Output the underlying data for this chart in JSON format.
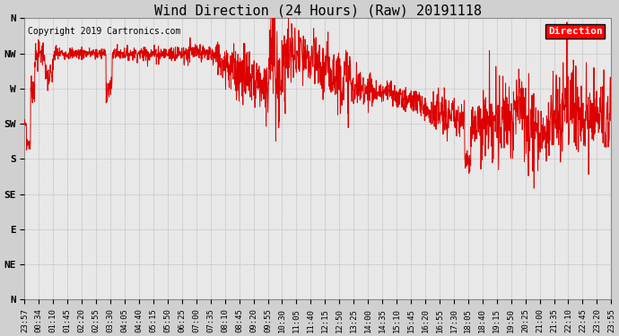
{
  "title": "Wind Direction (24 Hours) (Raw) 20191118",
  "copyright": "Copyright 2019 Cartronics.com",
  "legend_label": "Direction",
  "line_color": "#dd0000",
  "fig_facecolor": "#d0d0d0",
  "ax_facecolor": "#e8e8e8",
  "grid_color": "#999999",
  "ytick_labels": [
    "N",
    "NW",
    "W",
    "SW",
    "S",
    "SE",
    "E",
    "NE",
    "N"
  ],
  "ytick_values": [
    360,
    315,
    270,
    225,
    180,
    135,
    90,
    45,
    0
  ],
  "ylim": [
    0,
    360
  ],
  "xtick_labels": [
    "23:57",
    "00:34",
    "01:10",
    "01:45",
    "02:20",
    "02:55",
    "03:30",
    "04:05",
    "04:40",
    "05:15",
    "05:50",
    "06:25",
    "07:00",
    "07:35",
    "08:10",
    "08:45",
    "09:20",
    "09:55",
    "10:30",
    "11:05",
    "11:40",
    "12:15",
    "12:50",
    "13:25",
    "14:00",
    "14:35",
    "15:10",
    "15:45",
    "16:20",
    "16:55",
    "17:30",
    "18:05",
    "18:40",
    "19:15",
    "19:50",
    "20:25",
    "21:00",
    "21:35",
    "22:10",
    "22:45",
    "23:20",
    "23:55"
  ],
  "font_family": "monospace",
  "title_fontsize": 11,
  "tick_fontsize": 6.5,
  "ytick_fontsize": 8,
  "copyright_fontsize": 7
}
